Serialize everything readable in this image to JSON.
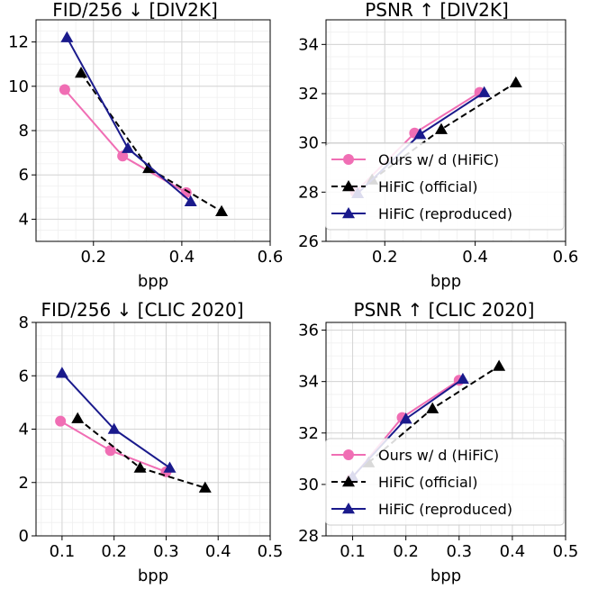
{
  "chart_data": [
    {
      "type": "line",
      "title": "FID/256 ↓  [DIV2K]",
      "xlabel": "bpp",
      "ylabel": "",
      "xlim": [
        0.07,
        0.6
      ],
      "ylim": [
        3.0,
        13.0
      ],
      "xticks": [
        0.2,
        0.4,
        0.6
      ],
      "xtick_labels": [
        "0.2",
        "0.4",
        "0.6"
      ],
      "yticks": [
        4,
        6,
        8,
        10,
        12
      ],
      "ytick_labels": [
        "4",
        "6",
        "8",
        "10",
        "12"
      ],
      "grid": true,
      "legend": null,
      "series": [
        {
          "name": "Ours w/ d (HiFiC)",
          "color": "#f06eb4",
          "marker": "circle",
          "dash": false,
          "x": [
            0.135,
            0.266,
            0.41
          ],
          "y": [
            9.85,
            6.85,
            5.2
          ]
        },
        {
          "name": "HiFiC (official)",
          "color": "#000000",
          "marker": "triangle",
          "dash": true,
          "x": [
            0.172,
            0.325,
            0.49
          ],
          "y": [
            10.6,
            6.3,
            4.35
          ]
        },
        {
          "name": "HiFiC (reproduced)",
          "color": "#1a1a8c",
          "marker": "triangle",
          "dash": false,
          "x": [
            0.14,
            0.278,
            0.42
          ],
          "y": [
            12.2,
            7.2,
            4.8
          ]
        }
      ]
    },
    {
      "type": "line",
      "title": "PSNR ↑  [DIV2K]",
      "xlabel": "bpp",
      "ylabel": "",
      "xlim": [
        0.07,
        0.6
      ],
      "ylim": [
        26.0,
        35.0
      ],
      "xticks": [
        0.2,
        0.4,
        0.6
      ],
      "xtick_labels": [
        "0.2",
        "0.4",
        "0.6"
      ],
      "yticks": [
        26,
        28,
        30,
        32,
        34
      ],
      "ytick_labels": [
        "26",
        "28",
        "30",
        "32",
        "34"
      ],
      "grid": true,
      "legend": "center-right",
      "series": [
        {
          "name": "Ours w/ d (HiFiC)",
          "color": "#f06eb4",
          "marker": "circle",
          "dash": false,
          "x": [
            0.135,
            0.266,
            0.41
          ],
          "y": [
            28.0,
            30.4,
            32.05
          ]
        },
        {
          "name": "HiFiC (official)",
          "color": "#000000",
          "marker": "triangle",
          "dash": true,
          "x": [
            0.172,
            0.325,
            0.49
          ],
          "y": [
            28.5,
            30.55,
            32.45
          ]
        },
        {
          "name": "HiFiC (reproduced)",
          "color": "#1a1a8c",
          "marker": "triangle",
          "dash": false,
          "x": [
            0.14,
            0.278,
            0.42
          ],
          "y": [
            27.95,
            30.35,
            32.05
          ]
        }
      ]
    },
    {
      "type": "line",
      "title": "FID/256 ↓  [CLIC 2020]",
      "xlabel": "bpp",
      "ylabel": "",
      "xlim": [
        0.05,
        0.5
      ],
      "ylim": [
        0.0,
        8.0
      ],
      "xticks": [
        0.1,
        0.2,
        0.3,
        0.4,
        0.5
      ],
      "xtick_labels": [
        "0.1",
        "0.2",
        "0.3",
        "0.4",
        "0.5"
      ],
      "yticks": [
        0,
        2,
        4,
        6,
        8
      ],
      "ytick_labels": [
        "0",
        "2",
        "4",
        "6",
        "8"
      ],
      "grid": true,
      "legend": null,
      "series": [
        {
          "name": "Ours w/ d (HiFiC)",
          "color": "#f06eb4",
          "marker": "circle",
          "dash": false,
          "x": [
            0.097,
            0.193,
            0.3
          ],
          "y": [
            4.3,
            3.2,
            2.4
          ]
        },
        {
          "name": "HiFiC (official)",
          "color": "#000000",
          "marker": "triangle",
          "dash": true,
          "x": [
            0.13,
            0.25,
            0.375
          ],
          "y": [
            4.4,
            2.55,
            1.8
          ]
        },
        {
          "name": "HiFiC (reproduced)",
          "color": "#1a1a8c",
          "marker": "triangle",
          "dash": false,
          "x": [
            0.1,
            0.2,
            0.307
          ],
          "y": [
            6.1,
            4.0,
            2.55
          ]
        }
      ]
    },
    {
      "type": "line",
      "title": "PSNR ↑  [CLIC 2020]",
      "xlabel": "bpp",
      "ylabel": "",
      "xlim": [
        0.05,
        0.5
      ],
      "ylim": [
        28.0,
        36.3
      ],
      "xticks": [
        0.1,
        0.2,
        0.3,
        0.4,
        0.5
      ],
      "xtick_labels": [
        "0.1",
        "0.2",
        "0.3",
        "0.4",
        "0.5"
      ],
      "yticks": [
        28,
        30,
        32,
        34,
        36
      ],
      "ytick_labels": [
        "28",
        "30",
        "32",
        "34",
        "36"
      ],
      "grid": true,
      "legend": "lower-right",
      "series": [
        {
          "name": "Ours w/ d (HiFiC)",
          "color": "#f06eb4",
          "marker": "circle",
          "dash": false,
          "x": [
            0.097,
            0.193,
            0.3
          ],
          "y": [
            30.2,
            32.6,
            34.05
          ]
        },
        {
          "name": "HiFiC (official)",
          "color": "#000000",
          "marker": "triangle",
          "dash": true,
          "x": [
            0.13,
            0.25,
            0.375
          ],
          "y": [
            30.85,
            32.95,
            34.6
          ]
        },
        {
          "name": "HiFiC (reproduced)",
          "color": "#1a1a8c",
          "marker": "triangle",
          "dash": false,
          "x": [
            0.1,
            0.2,
            0.307
          ],
          "y": [
            30.3,
            32.55,
            34.1
          ]
        }
      ]
    }
  ]
}
